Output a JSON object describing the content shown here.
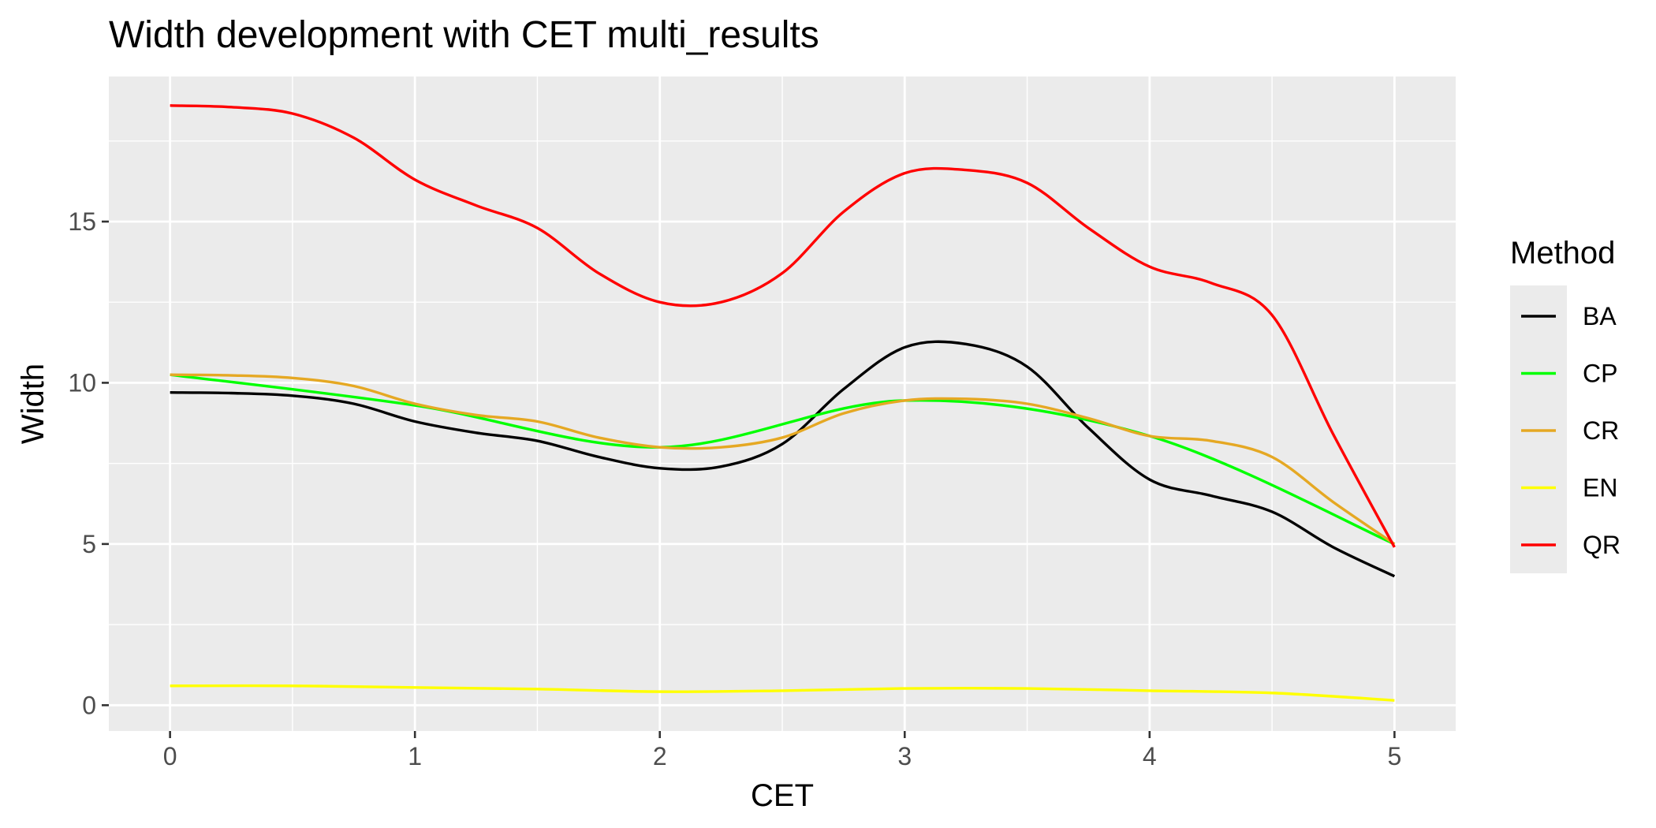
{
  "chart_data": {
    "type": "line",
    "title": "Width development with CET multi_results",
    "xlabel": "CET",
    "ylabel": "Width",
    "xlim": [
      -0.25,
      5.25
    ],
    "ylim": [
      -0.8,
      19.5
    ],
    "x_ticks": [
      0,
      1,
      2,
      3,
      4,
      5
    ],
    "x_tick_labels": [
      "0",
      "1",
      "2",
      "3",
      "4",
      "5"
    ],
    "y_ticks": [
      0,
      5,
      10,
      15
    ],
    "y_tick_labels": [
      "0",
      "5",
      "10",
      "15"
    ],
    "grid": true,
    "legend": {
      "title": "Method",
      "position": "right"
    },
    "series": [
      {
        "name": "BA",
        "color": "#000000",
        "x": [
          0,
          0.25,
          0.5,
          0.75,
          1,
          1.25,
          1.5,
          1.75,
          2,
          2.25,
          2.5,
          2.75,
          3,
          3.25,
          3.5,
          3.75,
          4,
          4.25,
          4.5,
          4.75,
          5
        ],
        "y": [
          9.7,
          9.68,
          9.6,
          9.35,
          8.8,
          8.45,
          8.2,
          7.7,
          7.35,
          7.4,
          8.1,
          9.8,
          11.1,
          11.2,
          10.5,
          8.6,
          7.0,
          6.5,
          6.0,
          4.9,
          4.0
        ]
      },
      {
        "name": "CP",
        "color": "#00ff00",
        "x": [
          0,
          1,
          2,
          3,
          4,
          5
        ],
        "y": [
          10.25,
          9.3,
          8.0,
          9.45,
          8.35,
          5.0
        ]
      },
      {
        "name": "CR",
        "color": "#e5a823",
        "x": [
          0,
          0.25,
          0.5,
          0.75,
          1,
          1.25,
          1.5,
          1.75,
          2,
          2.25,
          2.5,
          2.75,
          3,
          3.25,
          3.5,
          3.75,
          4,
          4.25,
          4.5,
          4.75,
          5
        ],
        "y": [
          10.25,
          10.23,
          10.15,
          9.9,
          9.35,
          9.0,
          8.8,
          8.3,
          8.0,
          8.0,
          8.3,
          9.05,
          9.45,
          9.5,
          9.35,
          8.9,
          8.35,
          8.2,
          7.7,
          6.3,
          5.0
        ]
      },
      {
        "name": "EN",
        "color": "#ffff00",
        "x": [
          0,
          0.5,
          1,
          1.5,
          2,
          2.5,
          3,
          3.5,
          4,
          4.5,
          5
        ],
        "y": [
          0.6,
          0.6,
          0.55,
          0.5,
          0.42,
          0.45,
          0.52,
          0.52,
          0.45,
          0.38,
          0.15
        ]
      },
      {
        "name": "QR",
        "color": "#ff0000",
        "x": [
          0,
          0.25,
          0.5,
          0.75,
          1,
          1.25,
          1.5,
          1.75,
          2,
          2.25,
          2.5,
          2.75,
          3,
          3.25,
          3.5,
          3.75,
          4,
          4.25,
          4.5,
          4.75,
          5
        ],
        "y": [
          18.6,
          18.55,
          18.35,
          17.6,
          16.3,
          15.5,
          14.8,
          13.4,
          12.5,
          12.5,
          13.4,
          15.3,
          16.5,
          16.6,
          16.2,
          14.8,
          13.6,
          13.1,
          12.1,
          8.4,
          4.9
        ]
      }
    ]
  }
}
